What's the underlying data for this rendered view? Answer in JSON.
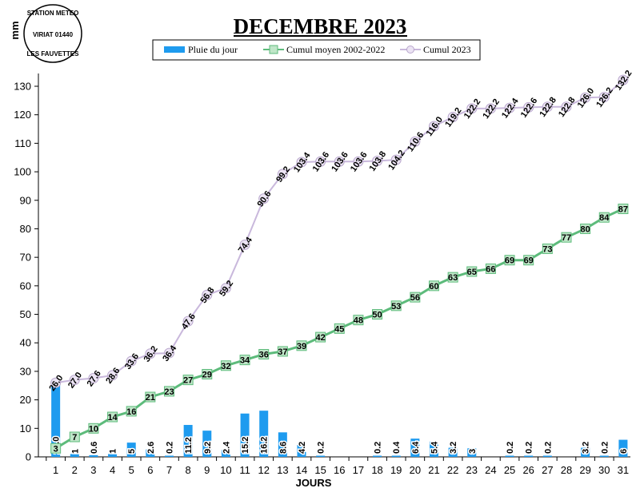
{
  "chart_data": {
    "type": "bar",
    "title": "DECEMBRE 2023",
    "xlabel": "JOURS",
    "ylabel": "mm",
    "ylim": [
      0,
      130
    ],
    "yticks": [
      0,
      10,
      20,
      30,
      40,
      50,
      60,
      70,
      80,
      90,
      100,
      110,
      120,
      130
    ],
    "categories": [
      "1",
      "2",
      "3",
      "4",
      "5",
      "6",
      "7",
      "8",
      "9",
      "10",
      "11",
      "12",
      "13",
      "14",
      "15",
      "16",
      "17",
      "18",
      "19",
      "20",
      "21",
      "22",
      "23",
      "24",
      "25",
      "26",
      "27",
      "28",
      "29",
      "30",
      "31"
    ],
    "grid": false,
    "legend_position": "top-center",
    "series": [
      {
        "name": "Pluie du jour",
        "kind": "bar",
        "color": "#1e9bef",
        "values": [
          26,
          1,
          0.6,
          1,
          5,
          2.6,
          0.2,
          11.2,
          9.2,
          2.4,
          15.2,
          16.2,
          8.6,
          4.2,
          0.2,
          0,
          0,
          0.2,
          0.4,
          6.4,
          5.4,
          3.2,
          3,
          0,
          0.2,
          0.2,
          0.2,
          0,
          3.2,
          0.2,
          6
        ],
        "labels": [
          "26.0",
          "1",
          "0.6",
          "1",
          "5",
          "2.6",
          "0.2",
          "11.2",
          "9.2",
          "2.4",
          "15.2",
          "16.2",
          "8.6",
          "4.2",
          "0.2",
          "",
          "",
          "0.2",
          "0.4",
          "6.4",
          "5.4",
          "3.2",
          "3",
          "",
          "0.2",
          "0.2",
          "0.2",
          "",
          "3.2",
          "0.2",
          "6"
        ]
      },
      {
        "name": "Cumul moyen 2002-2022",
        "kind": "line",
        "color": "#5dbb7b",
        "values": [
          3,
          7,
          10,
          14,
          16,
          21,
          23,
          27,
          29,
          32,
          34,
          36,
          37,
          39,
          42,
          45,
          48,
          50,
          53,
          56,
          60,
          63,
          65,
          66,
          69,
          69,
          73,
          77,
          80,
          84,
          87
        ],
        "labels": [
          "3",
          "7",
          "10",
          "14",
          "16",
          "21",
          "23",
          "27",
          "29",
          "32",
          "34",
          "36",
          "37",
          "39",
          "42",
          "45",
          "48",
          "50",
          "53",
          "56",
          "60",
          "63",
          "65",
          "66",
          "69",
          "69",
          "73",
          "77",
          "80",
          "84",
          "87"
        ]
      },
      {
        "name": "Cumul 2023",
        "kind": "line",
        "color": "#c9b8dc",
        "values": [
          26.0,
          27.0,
          27.6,
          28.6,
          33.6,
          36.2,
          36.4,
          47.6,
          56.8,
          59.2,
          74.4,
          90.6,
          99.2,
          103.4,
          103.6,
          103.6,
          103.6,
          103.8,
          104.2,
          110.6,
          116.0,
          119.2,
          122.2,
          122.2,
          122.4,
          122.6,
          122.8,
          122.8,
          126.0,
          126.2,
          132.2
        ],
        "labels": [
          "26.0",
          "27.0",
          "27.6",
          "28.6",
          "33.6",
          "36.2",
          "36.4",
          "47.6",
          "56.8",
          "59.2",
          "74.4",
          "90.6",
          "99.2",
          "103.4",
          "103.6",
          "103.6",
          "103.6",
          "103.8",
          "104.2",
          "110.6",
          "116.0",
          "119.2",
          "122.2",
          "122.2",
          "122.4",
          "122.6",
          "122.8",
          "122.8",
          "126.0",
          "126.2",
          "132.2"
        ]
      }
    ]
  },
  "stamp": {
    "line1": "STATION METEO",
    "line2": "VIRIAT 01440",
    "line3": "LES FAUVETTES"
  }
}
